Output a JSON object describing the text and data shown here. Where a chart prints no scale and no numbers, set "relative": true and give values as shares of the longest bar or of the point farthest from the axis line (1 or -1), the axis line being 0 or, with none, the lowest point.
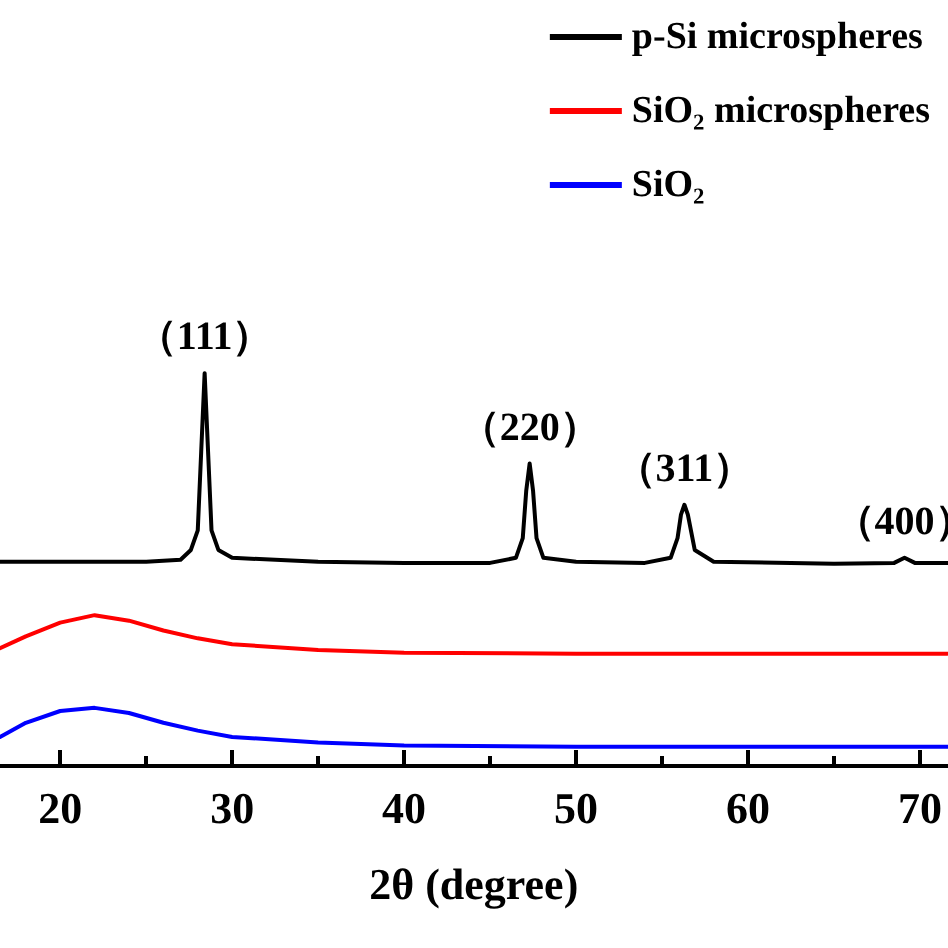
{
  "chart_data": {
    "type": "line",
    "relative": true,
    "xlabel": "2θ (degree)",
    "xlim": [
      16.5,
      71.6
    ],
    "xticks": [
      20,
      30,
      40,
      50,
      60,
      70
    ],
    "legend": "top right",
    "grid": false,
    "marker": "none",
    "line_style": "solid",
    "series": [
      {
        "name": "p-Si microspheres",
        "color": "#000000",
        "x": [
          16.5,
          20,
          25,
          27,
          27.6,
          28,
          28.2,
          28.4,
          28.6,
          28.8,
          29.2,
          30,
          35,
          40,
          45,
          46.5,
          46.9,
          47.1,
          47.3,
          47.5,
          47.7,
          48.1,
          50,
          54,
          55.5,
          55.9,
          56.1,
          56.3,
          56.5,
          56.9,
          58,
          65,
          68.5,
          69.1,
          69.7,
          71.6
        ],
        "values": [
          0.52,
          0.52,
          0.52,
          0.525,
          0.55,
          0.6,
          0.8,
          1,
          0.8,
          0.6,
          0.55,
          0.53,
          0.52,
          0.517,
          0.517,
          0.53,
          0.58,
          0.7,
          0.77,
          0.7,
          0.58,
          0.53,
          0.52,
          0.517,
          0.53,
          0.58,
          0.64,
          0.665,
          0.64,
          0.55,
          0.52,
          0.515,
          0.517,
          0.53,
          0.517,
          0.517
        ]
      },
      {
        "name": "SiO₂ microspheres",
        "color": "#ff0000",
        "x": [
          16.5,
          18,
          20,
          22,
          24,
          26,
          28,
          30,
          35,
          40,
          50,
          60,
          71.6
        ],
        "values": [
          0.3,
          0.33,
          0.365,
          0.384,
          0.37,
          0.345,
          0.325,
          0.31,
          0.295,
          0.288,
          0.286,
          0.286,
          0.286
        ]
      },
      {
        "name": "SiO₂",
        "color": "#0000ff",
        "x": [
          16.5,
          18,
          20,
          22,
          24,
          26,
          28,
          30,
          35,
          40,
          50,
          60,
          71.6
        ],
        "values": [
          0.074,
          0.11,
          0.14,
          0.148,
          0.135,
          0.11,
          0.09,
          0.074,
          0.06,
          0.052,
          0.049,
          0.049,
          0.049
        ]
      }
    ],
    "annotations": [
      {
        "text": "（111）",
        "x": 28.4,
        "y": 1
      },
      {
        "text": "（220）",
        "x": 47.3,
        "y": 0.77
      },
      {
        "text": "（311）",
        "x": 56.3,
        "y": 0.665
      },
      {
        "text": "（400）",
        "x": 69.1,
        "y": 0.53
      }
    ]
  }
}
